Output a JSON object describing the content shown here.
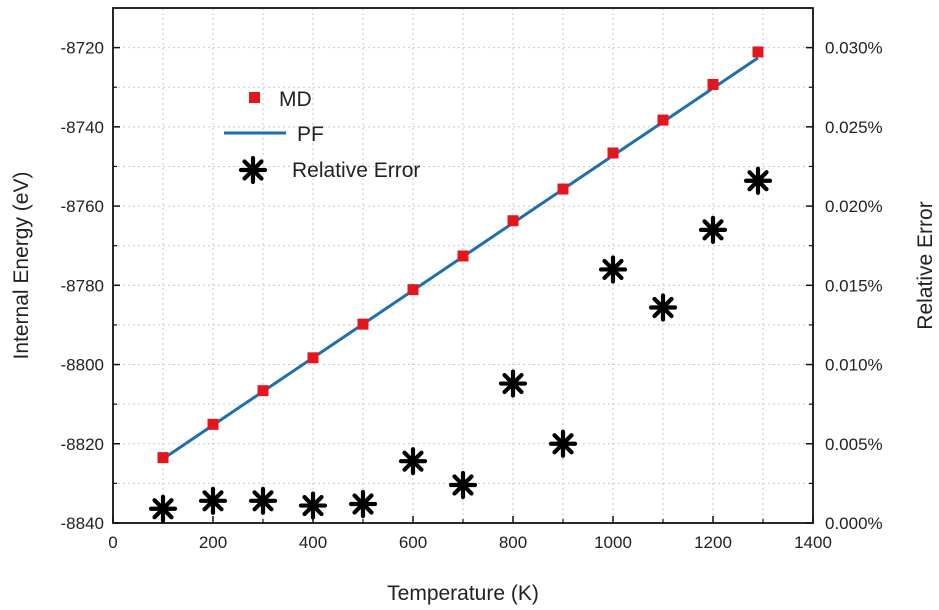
{
  "chart_data": {
    "type": "scatter",
    "xlabel": "Temperature (K)",
    "ylabel": "Internal Energy (eV)",
    "y2label": "Relative Error",
    "xlim": [
      0,
      1400
    ],
    "ylim": [
      -8840,
      -8710
    ],
    "y2lim": [
      0,
      0.000325
    ],
    "grid": true,
    "legend_position": "upper-left",
    "x_ticks": [
      "0",
      "200",
      "400",
      "600",
      "800",
      "1000",
      "1200",
      "1400"
    ],
    "y_ticks": [
      "-8840",
      "-8820",
      "-8800",
      "-8780",
      "-8760",
      "-8740",
      "-8720"
    ],
    "y2_ticks": [
      "0.000%",
      "0.005%",
      "0.010%",
      "0.015%",
      "0.020%",
      "0.025%",
      "0.030%"
    ],
    "colors": {
      "md": "#e3171b",
      "pf": "#1f6fb0",
      "error": "#000000"
    },
    "series": [
      {
        "name": "MD",
        "axis": "left",
        "marker": "square",
        "x": [
          100,
          200,
          300,
          400,
          500,
          600,
          700,
          800,
          900,
          1000,
          1100,
          1200,
          1290
        ],
        "y": [
          -8823.5,
          -8815.1,
          -8806.6,
          -8798.3,
          -8789.8,
          -8781.1,
          -8772.6,
          -8763.7,
          -8755.7,
          -8746.6,
          -8738.3,
          -8729.3,
          -8721.1
        ]
      },
      {
        "name": "PF",
        "axis": "left",
        "style": "line",
        "x": [
          100,
          1290
        ],
        "y": [
          -8823.8,
          -8722.6
        ]
      },
      {
        "name": "Relative Error",
        "axis": "right",
        "marker": "asterisk",
        "x": [
          100,
          200,
          300,
          400,
          500,
          600,
          700,
          800,
          900,
          1000,
          1100,
          1200,
          1290
        ],
        "y": [
          9e-06,
          1.4e-05,
          1.4e-05,
          1.1e-05,
          1.2e-05,
          3.9e-05,
          2.4e-05,
          8.8e-05,
          5e-05,
          0.00016,
          0.000136,
          0.000185,
          0.000216
        ]
      }
    ]
  }
}
